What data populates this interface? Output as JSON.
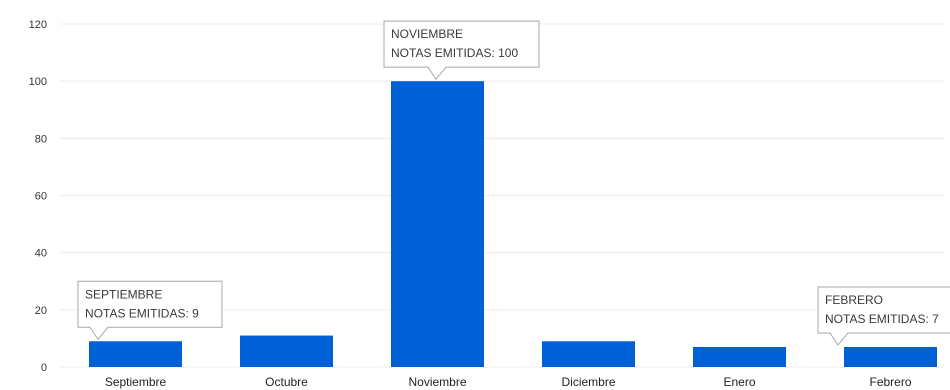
{
  "chart_data": {
    "type": "bar",
    "categories": [
      "Septiembre",
      "Octubre",
      "Noviembre",
      "Diciembre",
      "Enero",
      "Febrero"
    ],
    "values": [
      9,
      11,
      100,
      9,
      7,
      7
    ],
    "ylim": [
      0,
      120
    ],
    "yticks": [
      "0",
      "20",
      "40",
      "60",
      "80",
      "100",
      "120"
    ],
    "grid": true,
    "bar_color": "#0061d6",
    "annotations": [
      {
        "index": 0,
        "line1": "SEPTIEMBRE",
        "line2": "NOTAS EMITIDAS: 9"
      },
      {
        "index": 2,
        "line1": "NOVIEMBRE",
        "line2": "NOTAS EMITIDAS: 100"
      },
      {
        "index": 5,
        "line1": "FEBRERO",
        "line2": "NOTAS EMITIDAS: 7"
      }
    ]
  }
}
